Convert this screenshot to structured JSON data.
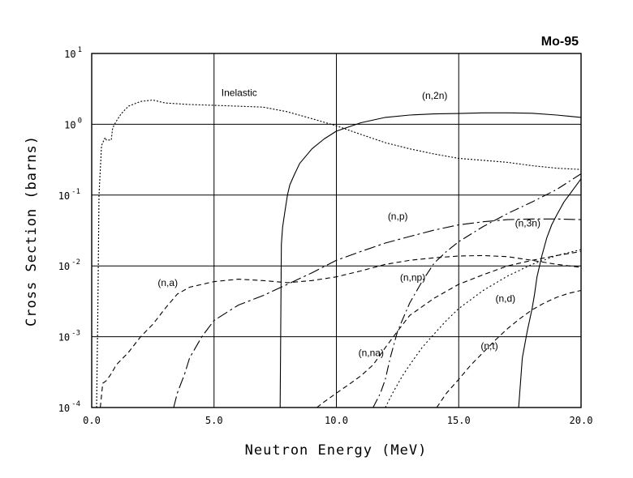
{
  "chart_data": {
    "type": "line",
    "title": "Mo-95",
    "xlabel": "Neutron Energy (MeV)",
    "ylabel": "Cross Section (barns)",
    "xlim": [
      0,
      20
    ],
    "ylim_log10": [
      -4,
      1
    ],
    "yscale": "log",
    "grid": true,
    "x_ticks": [
      {
        "value": 0,
        "label": "0.0"
      },
      {
        "value": 5,
        "label": "5.0"
      },
      {
        "value": 10,
        "label": "10.0"
      },
      {
        "value": 15,
        "label": "15.0"
      },
      {
        "value": 20,
        "label": "20.0"
      }
    ],
    "y_ticks": [
      {
        "exp": 1,
        "base": "10",
        "sup": "1"
      },
      {
        "exp": 0,
        "base": "10",
        "sup": "0"
      },
      {
        "exp": -1,
        "base": "10",
        "sup": "-1"
      },
      {
        "exp": -2,
        "base": "10",
        "sup": "-2"
      },
      {
        "exp": -3,
        "base": "10",
        "sup": "-3"
      },
      {
        "exp": -4,
        "base": "10",
        "sup": "-4"
      }
    ],
    "series": [
      {
        "name": "Inelastic",
        "dash": "2,2",
        "label": "Inelastic",
        "label_at": [
          5.3,
          2.5
        ],
        "x": [
          0.2,
          0.25,
          0.3,
          0.4,
          0.5,
          0.55,
          0.6,
          0.7,
          0.8,
          0.85,
          0.9,
          1.0,
          1.2,
          1.5,
          2.0,
          2.5,
          3.0,
          4.0,
          5.0,
          6.0,
          7.0,
          8.0,
          9.0,
          10.0,
          11.0,
          12.0,
          13.0,
          14.0,
          15.0,
          16.0,
          17.0,
          18.0,
          19.0,
          20.0
        ],
        "y": [
          0.0001,
          0.002,
          0.1,
          0.5,
          0.6,
          0.65,
          0.6,
          0.6,
          0.6,
          0.85,
          0.95,
          1.1,
          1.4,
          1.8,
          2.1,
          2.2,
          2.0,
          1.9,
          1.85,
          1.8,
          1.75,
          1.5,
          1.2,
          0.95,
          0.72,
          0.55,
          0.45,
          0.38,
          0.33,
          0.31,
          0.29,
          0.26,
          0.24,
          0.23
        ]
      },
      {
        "name": "(n,2n)",
        "dash": "",
        "label": "(n,2n)",
        "label_at": [
          13.5,
          2.3
        ],
        "x": [
          7.7,
          7.75,
          7.8,
          7.9,
          8.0,
          8.1,
          8.3,
          8.5,
          9.0,
          9.5,
          10.0,
          11.0,
          12.0,
          13.0,
          14.0,
          15.0,
          16.0,
          17.0,
          18.0,
          19.0,
          19.5,
          20.0
        ],
        "y": [
          0.0001,
          0.02,
          0.035,
          0.06,
          0.1,
          0.14,
          0.2,
          0.28,
          0.45,
          0.62,
          0.8,
          1.05,
          1.25,
          1.35,
          1.4,
          1.42,
          1.45,
          1.45,
          1.43,
          1.35,
          1.3,
          1.25
        ]
      },
      {
        "name": "(n,p)",
        "dash": "14,4,3,4",
        "label": "(n,p)",
        "label_at": [
          12.1,
          0.045
        ],
        "x": [
          3.35,
          3.5,
          3.8,
          4.0,
          4.5,
          5.0,
          6.0,
          7.0,
          8.0,
          9.0,
          10.0,
          11.0,
          12.0,
          13.0,
          14.0,
          15.0,
          16.0,
          17.0,
          18.0,
          19.0,
          20.0
        ],
        "y": [
          0.0001,
          0.00016,
          0.0003,
          0.0005,
          0.001,
          0.0017,
          0.0028,
          0.0038,
          0.0055,
          0.008,
          0.012,
          0.016,
          0.021,
          0.026,
          0.032,
          0.038,
          0.042,
          0.045,
          0.046,
          0.046,
          0.045
        ]
      },
      {
        "name": "(n,a)",
        "dash": "6,4",
        "label": "(n,a)",
        "label_at": [
          2.7,
          0.0052
        ],
        "x": [
          0.35,
          0.45,
          0.6,
          0.8,
          1.0,
          1.5,
          2.0,
          2.5,
          3.0,
          3.5,
          4.0,
          5.0,
          6.0,
          7.0,
          8.0,
          9.0,
          10.0,
          11.0,
          12.0,
          13.0,
          14.0,
          15.0,
          16.0,
          17.0,
          18.0,
          19.0,
          20.0
        ],
        "y": [
          0.0001,
          0.00022,
          0.00024,
          0.0003,
          0.0004,
          0.0006,
          0.001,
          0.0015,
          0.0025,
          0.004,
          0.005,
          0.006,
          0.0065,
          0.0062,
          0.0058,
          0.0062,
          0.007,
          0.0085,
          0.0105,
          0.012,
          0.013,
          0.0138,
          0.014,
          0.0135,
          0.012,
          0.0105,
          0.0095
        ]
      },
      {
        "name": "(n,np)",
        "dash": "12,4,2,4",
        "label": "(n,np)",
        "label_at": [
          12.6,
          0.0062
        ],
        "x": [
          11.5,
          11.8,
          12.0,
          12.2,
          12.5,
          13.0,
          13.5,
          14.0,
          14.5,
          15.0,
          16.0,
          17.0,
          18.0,
          19.0,
          20.0
        ],
        "y": [
          0.0001,
          0.00016,
          0.00025,
          0.0005,
          0.0012,
          0.003,
          0.006,
          0.011,
          0.016,
          0.022,
          0.036,
          0.055,
          0.08,
          0.12,
          0.2
        ]
      },
      {
        "name": "(n,na)",
        "dash": "6,4",
        "label": "(n,na)",
        "label_at": [
          10.9,
          0.00053
        ],
        "x": [
          9.2,
          9.5,
          10.0,
          10.5,
          11.0,
          11.5,
          12.0,
          12.5,
          13.0,
          14.0,
          15.0,
          16.0,
          17.0,
          18.0,
          19.0,
          20.0
        ],
        "y": [
          0.0001,
          0.00012,
          0.00016,
          0.00021,
          0.00028,
          0.0004,
          0.0007,
          0.0012,
          0.002,
          0.0035,
          0.0055,
          0.0075,
          0.01,
          0.012,
          0.014,
          0.016
        ]
      },
      {
        "name": "(n,d)",
        "dash": "2,3",
        "label": "(n,d)",
        "label_at": [
          16.5,
          0.0031
        ],
        "x": [
          12.0,
          12.3,
          12.7,
          13.0,
          13.5,
          14.0,
          14.5,
          15.0,
          16.0,
          17.0,
          18.0,
          19.0,
          20.0
        ],
        "y": [
          0.0001,
          0.00016,
          0.00028,
          0.0004,
          0.0007,
          0.0011,
          0.0017,
          0.0025,
          0.0045,
          0.0072,
          0.0105,
          0.014,
          0.017
        ]
      },
      {
        "name": "(n,3n)",
        "dash": "",
        "label": "(n,3n)",
        "label_at": [
          17.3,
          0.036
        ],
        "x": [
          17.45,
          17.6,
          17.8,
          18.0,
          18.1,
          18.2,
          18.4,
          18.6,
          18.8,
          19.0,
          19.3,
          19.6,
          20.0
        ],
        "y": [
          0.0001,
          0.0005,
          0.0012,
          0.0025,
          0.004,
          0.007,
          0.014,
          0.025,
          0.038,
          0.052,
          0.08,
          0.11,
          0.17
        ]
      },
      {
        "name": "(n,t)",
        "dash": "6,4",
        "label": "(n,t)",
        "label_at": [
          15.9,
          0.00067
        ],
        "x": [
          14.1,
          14.5,
          15.0,
          15.5,
          16.0,
          16.5,
          17.0,
          17.5,
          18.0,
          18.5,
          19.0,
          19.5,
          20.0
        ],
        "y": [
          0.0001,
          0.00016,
          0.00025,
          0.0004,
          0.0006,
          0.0009,
          0.0013,
          0.0018,
          0.0024,
          0.003,
          0.0036,
          0.0041,
          0.0045
        ]
      }
    ]
  }
}
